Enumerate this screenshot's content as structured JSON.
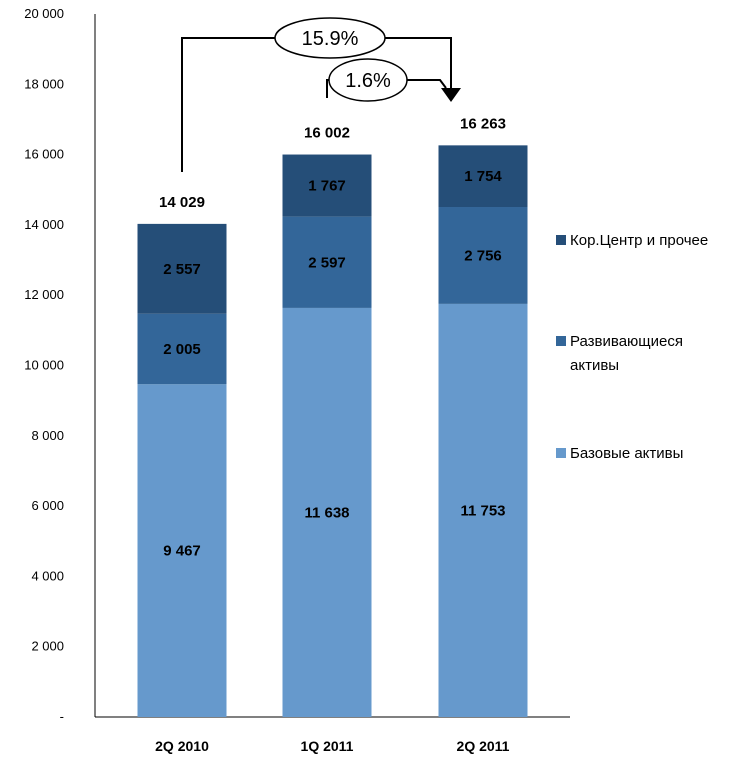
{
  "chart_data": {
    "type": "bar",
    "stacked": true,
    "categories": [
      "2Q 2010",
      "1Q 2011",
      "2Q 2011"
    ],
    "series": [
      {
        "name": "Базовые активы",
        "values": [
          9467,
          11638,
          11753
        ],
        "labels": [
          "9 467",
          "11 638",
          "11 753"
        ],
        "color": "#6699cc"
      },
      {
        "name": "Развивающиеся активы",
        "values": [
          2005,
          2597,
          2756
        ],
        "labels": [
          "2 005",
          "2 597",
          "2 756"
        ],
        "color": "#336699"
      },
      {
        "name": "Кор.Центр и прочее",
        "values": [
          2557,
          1767,
          1754
        ],
        "labels": [
          "2 557",
          "1 767",
          "1 754"
        ],
        "color": "#254e78"
      }
    ],
    "totals": [
      14029,
      16002,
      16263
    ],
    "total_labels": [
      "14 029",
      "16 002",
      "16 263"
    ],
    "ylim": [
      0,
      20000
    ],
    "yticks": [
      0,
      2000,
      4000,
      6000,
      8000,
      10000,
      12000,
      14000,
      16000,
      18000,
      20000
    ],
    "ytick_labels": [
      "-",
      "2 000",
      "4 000",
      "6 000",
      "8 000",
      "10 000",
      "12 000",
      "14 000",
      "16 000",
      "18 000",
      "20 000"
    ],
    "legend_position": "right",
    "legend_order": [
      2,
      1,
      0
    ],
    "legend_lines": [
      [
        "Кор.Центр и прочее"
      ],
      [
        "Развивающиеся",
        "активы"
      ],
      [
        "Базовые активы"
      ]
    ],
    "annotations": [
      {
        "text": "15.9%",
        "from": "2Q 2010",
        "to": "2Q 2011"
      },
      {
        "text": "1.6%",
        "from": "1Q 2011",
        "to": "2Q 2011"
      }
    ]
  }
}
